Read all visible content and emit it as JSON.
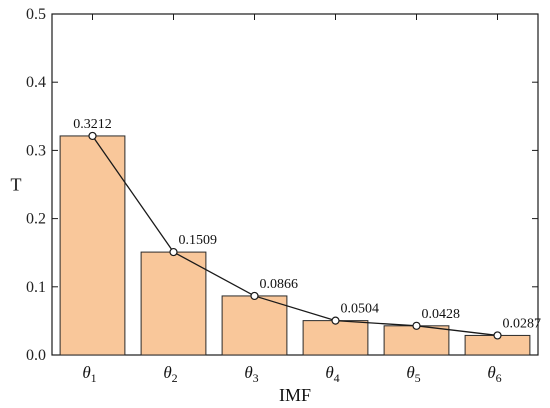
{
  "chart_data": {
    "type": "bar",
    "title": "",
    "xlabel": "IMF",
    "ylabel": "T",
    "ylim": [
      0,
      0.5
    ],
    "yticks": [
      "0.0",
      "0.1",
      "0.2",
      "0.3",
      "0.4",
      "0.5"
    ],
    "categories": [
      {
        "symbol": "θ",
        "sub": "1"
      },
      {
        "symbol": "θ",
        "sub": "2"
      },
      {
        "symbol": "θ",
        "sub": "3"
      },
      {
        "symbol": "θ",
        "sub": "4"
      },
      {
        "symbol": "θ",
        "sub": "5"
      },
      {
        "symbol": "θ",
        "sub": "6"
      }
    ],
    "values": [
      0.3212,
      0.1509,
      0.0866,
      0.0504,
      0.0428,
      0.0287
    ],
    "value_labels": [
      "0.3212",
      "0.1509",
      "0.0866",
      "0.0504",
      "0.0428",
      "0.0287"
    ],
    "overlay": "line-with-markers",
    "grid": false,
    "colors": {
      "bar_fill": "#f9c79a",
      "bar_stroke": "#2a2a2a",
      "line": "#1a1a1a",
      "marker_fill": "#ffffff"
    }
  }
}
